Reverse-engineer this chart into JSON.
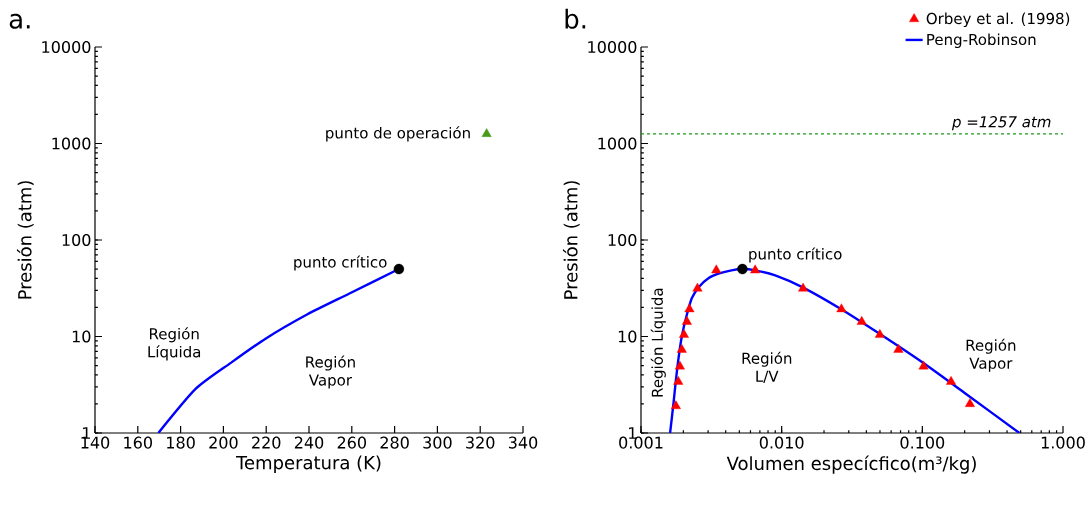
{
  "chart_data": [
    {
      "type": "line",
      "title": "a.",
      "xlabel": "Temperatura (K)",
      "ylabel": "Presión (atm)",
      "log": "y",
      "xlim": [
        140,
        340
      ],
      "ylim": [
        1,
        10000
      ],
      "xticks": [
        140,
        160,
        180,
        200,
        220,
        240,
        260,
        280,
        300,
        320,
        340
      ],
      "yticks": [
        1,
        10,
        100,
        1000,
        10000
      ],
      "series": [
        {
          "color": "#0000ff",
          "x": [
            169.6,
            187,
            203.3,
            219.7,
            239.3,
            258.9,
            282
          ],
          "values": [
            1,
            2.86,
            5.3,
            9.5,
            17,
            27.9,
            50
          ]
        },
        {
          "type": "scatter",
          "color": "#000000",
          "marker": "circle",
          "x": [
            282
          ],
          "values": [
            50
          ]
        },
        {
          "type": "scatter",
          "color": "#4a9a1a",
          "marker": "triangle",
          "x": [
            323
          ],
          "values": [
            1257
          ]
        }
      ],
      "annotations": [
        {
          "text": "punto de operación",
          "x": 323,
          "y": 1257
        },
        {
          "text": "punto crítico",
          "x": 282,
          "y": 50
        },
        "Región Líquida",
        "Región Vapor"
      ]
    },
    {
      "type": "line",
      "title": "b.",
      "xlabel": "Volumen especícfico(m³/kg)",
      "ylabel": "Presión (atm)",
      "log": "xy",
      "xlim": [
        0.001,
        1
      ],
      "ylim": [
        1,
        10000
      ],
      "xticks": [
        {
          "value": 0.001,
          "label": "0.001"
        },
        {
          "value": 0.01,
          "label": "0.010"
        },
        {
          "value": 0.1,
          "label": "0.100"
        },
        {
          "value": 1,
          "label": "1.000"
        }
      ],
      "yticks": [
        1,
        10,
        100,
        1000,
        10000
      ],
      "legend": "top right",
      "series": [
        {
          "type": "scatter",
          "name": "Orbey et al. (1998)",
          "color": "#ff0000",
          "marker": "triangle",
          "x": [
            0.00177,
            0.00184,
            0.00189,
            0.00195,
            0.00202,
            0.00212,
            0.00221,
            0.00252,
            0.00343,
            0.00648,
            0.0142,
            0.0266,
            0.0371,
            0.0499,
            0.0676,
            0.102,
            0.16,
            0.218
          ],
          "values": [
            1.9,
            3.4,
            4.9,
            7.3,
            10.4,
            14.2,
            19.2,
            31.4,
            48.5,
            48.5,
            31.4,
            19.2,
            14.2,
            10.4,
            7.3,
            4.9,
            3.4,
            2.0
          ]
        },
        {
          "name": "Peng-Robinson",
          "color": "#0000ff",
          "x": [
            0.00161,
            0.0017,
            0.00177,
            0.00185,
            0.00195,
            0.0021,
            0.0023,
            0.0026,
            0.003,
            0.0036,
            0.0044,
            0.00526,
            0.0065,
            0.009,
            0.014,
            0.026,
            0.05,
            0.1,
            0.2,
            0.49
          ],
          "values": [
            1,
            2,
            3.5,
            6,
            10,
            16,
            25,
            33,
            40,
            45,
            48.5,
            50,
            48.5,
            43,
            32.5,
            19.5,
            10.6,
            5.4,
            2.6,
            1
          ]
        },
        {
          "type": "scatter",
          "color": "#000000",
          "marker": "circle",
          "x": [
            0.00526
          ],
          "values": [
            50
          ]
        }
      ],
      "ref_lines": [
        {
          "axis": "y",
          "value": 1257,
          "label": "p =1257 atm",
          "color": "#1a9a1a",
          "line_style": "dashed"
        }
      ],
      "annotations": [
        {
          "text": "punto crítico",
          "x": 0.00526,
          "y": 50
        },
        "Región L/V",
        "Región Líquida",
        "Región Vapor"
      ]
    }
  ]
}
